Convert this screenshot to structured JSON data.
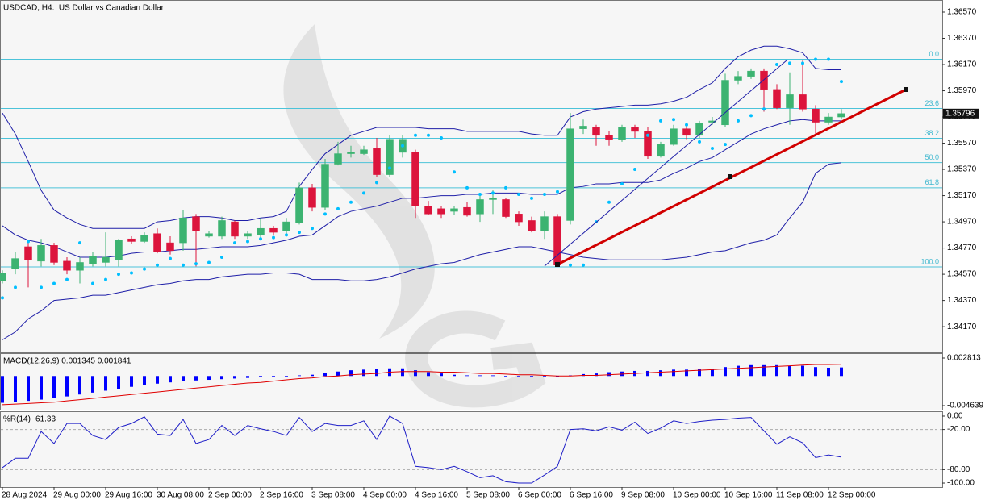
{
  "chart_data": [
    {
      "type": "candlestick",
      "title": "USDCAD, H4:  US Dollar vs Canadian Dollar",
      "categories": [
        "28 Aug 2024",
        null,
        null,
        null,
        "29 Aug 00:00",
        null,
        null,
        null,
        "29 Aug 16:00",
        null,
        null,
        null,
        "30 Aug 08:00",
        null,
        null,
        null,
        "2 Sep 00:00",
        null,
        null,
        null,
        "2 Sep 16:00",
        null,
        null,
        null,
        "3 Sep 08:00",
        null,
        null,
        null,
        "4 Sep 00:00",
        null,
        null,
        null,
        "4 Sep 16:00",
        null,
        null,
        null,
        "5 Sep 08:00",
        null,
        null,
        null,
        "6 Sep 00:00",
        null,
        null,
        null,
        "6 Sep 16:00",
        null,
        null,
        null,
        "9 Sep 08:00",
        null,
        null,
        null,
        "10 Sep 00:00",
        null,
        null,
        null,
        "10 Sep 16:00",
        null,
        null,
        null,
        "11 Sep 08:00",
        null,
        null,
        null,
        "12 Sep 00:00",
        null
      ],
      "open": [
        1.3452,
        1.3461,
        1.3478,
        1.3467,
        1.3479,
        1.3467,
        1.346,
        1.3465,
        1.3466,
        1.3468,
        1.3484,
        1.3482,
        1.3488,
        1.3481,
        1.3481,
        1.3501,
        1.3486,
        1.3486,
        1.3497,
        1.3486,
        1.3487,
        1.3492,
        1.349,
        1.3496,
        1.3523,
        1.3508,
        1.3541,
        1.3549,
        1.3549,
        1.3553,
        1.3533,
        1.355,
        1.355,
        1.3509,
        1.3507,
        1.3505,
        1.3508,
        1.3503,
        1.3514,
        1.3514,
        1.3503,
        1.3498,
        1.349,
        1.3501,
        1.3498,
        1.3568,
        1.3569,
        1.3563,
        1.356,
        1.3569,
        1.3566,
        1.3547,
        1.3556,
        1.3568,
        1.3563,
        1.3573,
        1.3571,
        1.3605,
        1.3608,
        1.3612,
        1.3598,
        1.3584,
        1.3594,
        1.3583,
        1.3573,
        1.3577
      ],
      "high": [
        1.346,
        1.3474,
        1.3481,
        1.3484,
        1.3481,
        1.347,
        1.347,
        1.3474,
        1.3489,
        1.3484,
        1.3486,
        1.3489,
        1.3492,
        1.3486,
        1.3506,
        1.3503,
        1.349,
        1.3501,
        1.3498,
        1.349,
        1.35,
        1.3494,
        1.35,
        1.3527,
        1.3526,
        1.3545,
        1.3558,
        1.3555,
        1.3555,
        1.3561,
        1.3563,
        1.3563,
        1.3552,
        1.3513,
        1.3509,
        1.3509,
        1.3512,
        1.3518,
        1.3521,
        1.3515,
        1.3505,
        1.3501,
        1.3505,
        1.3503,
        1.358,
        1.3575,
        1.3571,
        1.3566,
        1.3571,
        1.3571,
        1.3569,
        1.3558,
        1.3571,
        1.3571,
        1.3574,
        1.3577,
        1.361,
        1.3612,
        1.3614,
        1.3614,
        1.3602,
        1.3611,
        1.362,
        1.3586,
        1.358,
        1.3583
      ],
      "low": [
        1.345,
        1.3457,
        1.3447,
        1.3463,
        1.3464,
        1.3457,
        1.345,
        1.3463,
        1.3463,
        1.3463,
        1.348,
        1.3481,
        1.3473,
        1.3472,
        1.3475,
        1.3463,
        1.3485,
        1.3484,
        1.3484,
        1.3484,
        1.3484,
        1.3487,
        1.3487,
        1.3495,
        1.3505,
        1.3506,
        1.354,
        1.3546,
        1.3548,
        1.3531,
        1.3531,
        1.3546,
        1.35,
        1.3502,
        1.35,
        1.3502,
        1.3501,
        1.3497,
        1.3503,
        1.35,
        1.3494,
        1.3489,
        1.3484,
        1.3463,
        1.3495,
        1.3564,
        1.3555,
        1.3555,
        1.3558,
        1.3561,
        1.3545,
        1.3546,
        1.3555,
        1.356,
        1.3561,
        1.3571,
        1.3569,
        1.3602,
        1.3606,
        1.3581,
        1.3583,
        1.3571,
        1.3581,
        1.3564,
        1.3571,
        1.3575
      ],
      "close": [
        1.3458,
        1.3469,
        1.3468,
        1.3479,
        1.3466,
        1.346,
        1.3466,
        1.3471,
        1.347,
        1.3483,
        1.3482,
        1.3487,
        1.3474,
        1.3475,
        1.35,
        1.349,
        1.3488,
        1.3498,
        1.3486,
        1.3488,
        1.3492,
        1.3489,
        1.3497,
        1.3523,
        1.3508,
        1.3541,
        1.3549,
        1.355,
        1.3552,
        1.3533,
        1.356,
        1.356,
        1.3509,
        1.3503,
        1.3503,
        1.3507,
        1.3502,
        1.3514,
        1.3515,
        1.3501,
        1.3497,
        1.349,
        1.3501,
        1.3464,
        1.3568,
        1.357,
        1.3563,
        1.356,
        1.3569,
        1.3566,
        1.3547,
        1.3556,
        1.3568,
        1.3563,
        1.3572,
        1.3574,
        1.3605,
        1.3608,
        1.3612,
        1.3598,
        1.3584,
        1.3594,
        1.3583,
        1.3573,
        1.3577,
        1.35796
      ],
      "up_color": "#3cb371",
      "down_color": "#dc143c",
      "bands": {
        "color": "#1f1fa8",
        "upper": [
          1.358,
          1.3564,
          1.3543,
          1.3521,
          1.3506,
          1.35,
          1.3495,
          1.3492,
          1.3492,
          1.3492,
          1.3492,
          1.3492,
          1.3497,
          1.3498,
          1.35,
          1.3501,
          1.3501,
          1.35,
          1.3498,
          1.3498,
          1.35,
          1.3501,
          1.3505,
          1.3524,
          1.3537,
          1.3549,
          1.3556,
          1.3563,
          1.3566,
          1.3569,
          1.3569,
          1.3569,
          1.3569,
          1.3568,
          1.3568,
          1.3568,
          1.3566,
          1.3566,
          1.3566,
          1.3566,
          1.3566,
          1.3564,
          1.3563,
          1.3563,
          1.3577,
          1.3581,
          1.3583,
          1.3584,
          1.3585,
          1.3586,
          1.3586,
          1.3587,
          1.3589,
          1.3592,
          1.3598,
          1.3603,
          1.3614,
          1.3623,
          1.3628,
          1.3631,
          1.3631,
          1.3629,
          1.3626,
          1.3614,
          1.3613,
          1.3613
        ],
        "middle": [
          1.3494,
          1.3487,
          1.3483,
          1.3481,
          1.3478,
          1.3474,
          1.347,
          1.347,
          1.347,
          1.3471,
          1.3473,
          1.3474,
          1.3474,
          1.3475,
          1.3476,
          1.3476,
          1.3477,
          1.3478,
          1.3478,
          1.3478,
          1.3479,
          1.3481,
          1.3483,
          1.3486,
          1.3487,
          1.3494,
          1.3501,
          1.3505,
          1.3507,
          1.3509,
          1.3512,
          1.3515,
          1.3515,
          1.3516,
          1.3517,
          1.3517,
          1.3518,
          1.3518,
          1.3519,
          1.3519,
          1.3519,
          1.3518,
          1.3518,
          1.3518,
          1.3523,
          1.3524,
          1.3526,
          1.3526,
          1.3527,
          1.3527,
          1.3527,
          1.3529,
          1.3534,
          1.3538,
          1.3543,
          1.3546,
          1.3552,
          1.3558,
          1.3564,
          1.3568,
          1.3571,
          1.3574,
          1.3575,
          1.3574,
          1.3574,
          1.3574
        ],
        "lower": [
          1.3407,
          1.3413,
          1.3423,
          1.3429,
          1.3437,
          1.3438,
          1.3439,
          1.3441,
          1.3441,
          1.3443,
          1.3445,
          1.3447,
          1.3449,
          1.345,
          1.3452,
          1.3453,
          1.3453,
          1.3455,
          1.3456,
          1.3457,
          1.3457,
          1.3458,
          1.3458,
          1.3457,
          1.3453,
          1.3453,
          1.3453,
          1.3452,
          1.3452,
          1.3453,
          1.3455,
          1.3458,
          1.3461,
          1.3463,
          1.3465,
          1.3466,
          1.3469,
          1.3472,
          1.3474,
          1.3476,
          1.3478,
          1.3478,
          1.3476,
          1.3474,
          1.3472,
          1.347,
          1.3469,
          1.3468,
          1.3468,
          1.3468,
          1.3468,
          1.3468,
          1.3469,
          1.347,
          1.3472,
          1.3474,
          1.3475,
          1.3478,
          1.3481,
          1.3483,
          1.3487,
          1.35,
          1.3512,
          1.3534,
          1.3541,
          1.3542
        ]
      },
      "sar": {
        "color": "#00bfff",
        "values": [
          1.3439,
          1.3447,
          1.3482,
          1.3447,
          1.345,
          1.3453,
          1.3481,
          1.345,
          1.3453,
          1.3457,
          1.3458,
          1.3461,
          1.3464,
          1.3469,
          1.3464,
          1.3465,
          1.3466,
          1.347,
          1.3481,
          1.3482,
          1.3484,
          1.3485,
          1.3487,
          1.3489,
          1.3492,
          1.3503,
          1.3507,
          1.3512,
          1.3519,
          1.3527,
          1.3538,
          1.3555,
          1.3563,
          1.3563,
          1.3561,
          1.3535,
          1.3523,
          1.3518,
          1.3519,
          1.3523,
          1.3518,
          1.3515,
          1.3518,
          1.352,
          1.3464,
          1.3464,
          1.3497,
          1.3512,
          1.3526,
          1.3537,
          1.3563,
          1.3574,
          1.3575,
          1.3571,
          1.3558,
          1.3553,
          1.3556,
          1.3574,
          1.3578,
          1.3583,
          1.3617,
          1.3618,
          1.3618,
          1.3621,
          1.3621,
          1.3604
        ]
      },
      "fibonacci": [
        {
          "value": 1.3621,
          "label": "0.0"
        },
        {
          "value": 1.35835,
          "label": "23.6"
        },
        {
          "value": 1.35607,
          "label": "38.2"
        },
        {
          "value": 1.35422,
          "label": "50.0"
        },
        {
          "value": 1.3523,
          "label": "61.8"
        },
        {
          "value": 1.34626,
          "label": "100.0"
        }
      ],
      "fib_color": "#4cc3d9",
      "last_price": {
        "value": 1.35796,
        "label": "1.35796"
      },
      "ylim": [
        1.3398,
        1.3665
      ],
      "yticks": [
        {
          "value": 1.3657,
          "label": "1.36570"
        },
        {
          "value": 1.3637,
          "label": "1.36370"
        },
        {
          "value": 1.3617,
          "label": "1.36170"
        },
        {
          "value": 1.3597,
          "label": "1.35970"
        },
        {
          "value": 1.3577,
          "label": "1.35770"
        },
        {
          "value": 1.3557,
          "label": "1.35570"
        },
        {
          "value": 1.3537,
          "label": "1.35370"
        },
        {
          "value": 1.3517,
          "label": "1.35170"
        },
        {
          "value": 1.3497,
          "label": "1.34970"
        },
        {
          "value": 1.3477,
          "label": "1.34770"
        },
        {
          "value": 1.3457,
          "label": "1.34570"
        },
        {
          "value": 1.3437,
          "label": "1.34370"
        },
        {
          "value": 1.3417,
          "label": "1.34170"
        }
      ]
    },
    {
      "type": "bar",
      "title": "MACD(12,26,9) 0.001345 0.001841",
      "color": "#0000ff",
      "values": [
        -0.0042,
        -0.0041,
        -0.0039,
        -0.0037,
        -0.0035,
        -0.0032,
        -0.0029,
        -0.0026,
        -0.0023,
        -0.002,
        -0.0017,
        -0.0014,
        -0.0012,
        -0.001,
        -0.0008,
        -0.0007,
        -0.0006,
        -0.0005,
        -0.0004,
        -0.0003,
        -0.0002,
        -0.0001,
        -0.0001,
        0.0001,
        0.0002,
        0.0005,
        0.0007,
        0.0009,
        0.001,
        0.0011,
        0.0012,
        0.0012,
        0.0009,
        0.0006,
        0.0004,
        0.0002,
        0.0001,
        0.0001,
        0.0001,
        0.0,
        -0.0001,
        -0.0001,
        -0.0001,
        -0.0002,
        0.0001,
        0.0003,
        0.0004,
        0.0006,
        0.0007,
        0.0008,
        0.0008,
        0.0009,
        0.001,
        0.001,
        0.0011,
        0.0011,
        0.0014,
        0.0016,
        0.0017,
        0.0017,
        0.0017,
        0.0016,
        0.0016,
        0.0014,
        0.0013,
        0.001345
      ],
      "signal": {
        "color": "#e00000",
        "values": [
          -0.0045,
          -0.0044,
          -0.0043,
          -0.0042,
          -0.0041,
          -0.0039,
          -0.0037,
          -0.0035,
          -0.0033,
          -0.0031,
          -0.0029,
          -0.0027,
          -0.0025,
          -0.0023,
          -0.0021,
          -0.0019,
          -0.0017,
          -0.0015,
          -0.0013,
          -0.0011,
          -0.001,
          -0.0008,
          -0.0006,
          -0.0004,
          -0.0003,
          -0.0001,
          0.0,
          0.0002,
          0.0003,
          0.0004,
          0.0006,
          0.0007,
          0.0007,
          0.0007,
          0.0006,
          0.0006,
          0.0005,
          0.0004,
          0.0004,
          0.0003,
          0.0002,
          0.0002,
          0.0001,
          0.0,
          0.0,
          0.0001,
          0.0001,
          0.0002,
          0.0003,
          0.0004,
          0.0005,
          0.0006,
          0.0007,
          0.0008,
          0.0009,
          0.001,
          0.0011,
          0.0012,
          0.0013,
          0.0014,
          0.0015,
          0.0016,
          0.0017,
          0.0018,
          0.0018,
          0.001841
        ]
      },
      "ylim": [
        -0.00527,
        0.00357
      ],
      "yticks": [
        0.002813,
        -0.004639
      ]
    },
    {
      "type": "line",
      "title": "%R(14) -61.33",
      "color": "#1f1fc8",
      "values": [
        -77,
        -63,
        -63,
        -23,
        -41,
        -11,
        -11,
        -29,
        -35,
        -17,
        -11,
        -1,
        -27,
        -29,
        -5,
        -41,
        -35,
        -14,
        -29,
        -14,
        -19,
        -23,
        -29,
        -2,
        -23,
        -11,
        -14,
        -14,
        -7,
        -35,
        0,
        -11,
        -75,
        -77,
        -80,
        -75,
        -83,
        -92,
        -89,
        -98,
        -100,
        -100,
        -88,
        -75,
        -20,
        -19,
        -22,
        -16,
        -21,
        -9,
        -26,
        -18,
        -7,
        -11,
        -8,
        -6,
        -5,
        -3,
        -2,
        -22,
        -42,
        -31,
        -40,
        -62,
        -58,
        -61.33
      ],
      "levels": [
        -20,
        -80
      ],
      "ylim": [
        -106,
        6
      ],
      "yticks": [
        {
          "value": 0,
          "label": "0.00"
        },
        {
          "value": -20,
          "label": "-20.00"
        },
        {
          "value": -80,
          "label": "-80.00"
        },
        {
          "value": -100,
          "label": "-100.00"
        }
      ]
    }
  ]
}
